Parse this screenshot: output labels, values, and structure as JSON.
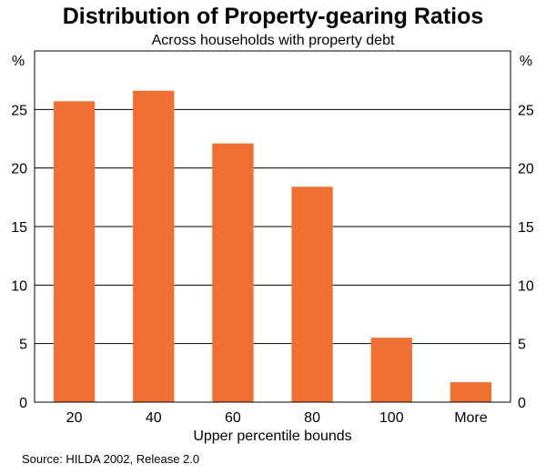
{
  "chart_data": {
    "type": "bar",
    "title": "Distribution of Property-gearing Ratios",
    "subtitle": "Across households with property debt",
    "categories": [
      "20",
      "40",
      "60",
      "80",
      "100",
      "More"
    ],
    "values": [
      25.7,
      26.6,
      22.1,
      18.4,
      5.5,
      1.7
    ],
    "xlabel": "Upper percentile bounds",
    "ylabel_left": "%",
    "ylabel_right": "%",
    "ylim": [
      0,
      30
    ],
    "yticks": [
      0,
      5,
      10,
      15,
      20,
      25
    ],
    "grid": true,
    "bar_color": "#f07034",
    "source": "Source: HILDA 2002, Release 2.0"
  }
}
